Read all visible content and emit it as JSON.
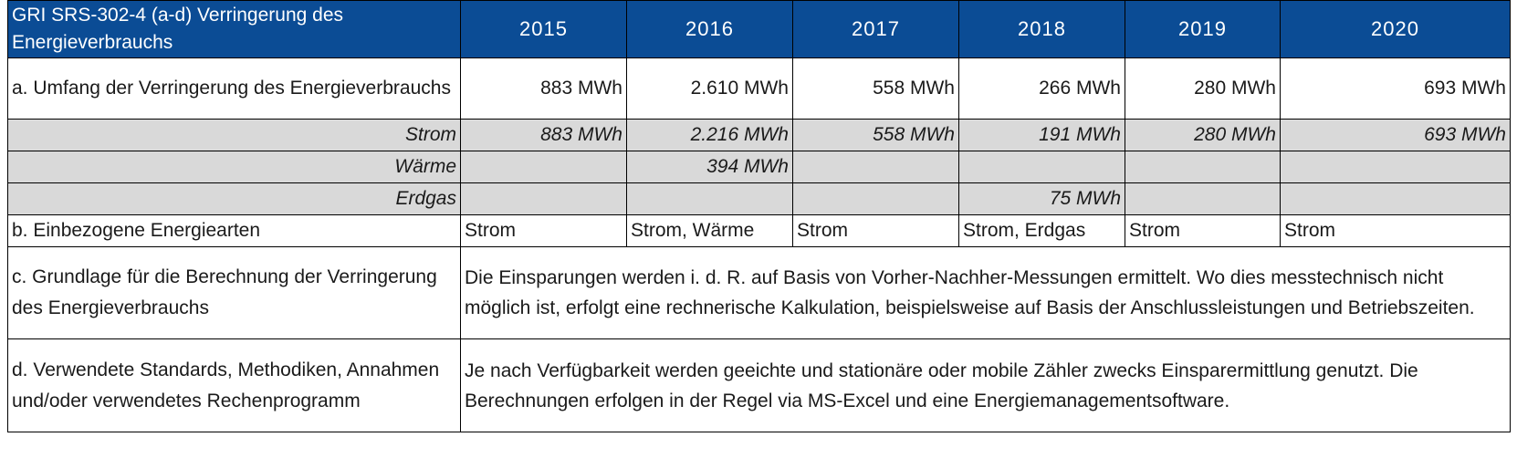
{
  "table": {
    "title": "GRI SRS-302-4 (a-d) Verringerung des Energieverbrauchs",
    "years": [
      "2015",
      "2016",
      "2017",
      "2018",
      "2019",
      "2020"
    ],
    "row_a": {
      "label": "a. Umfang der Verringerung des Energieverbrauchs",
      "values": [
        "883 MWh",
        "2.610 MWh",
        "558 MWh",
        "266 MWh",
        "280 MWh",
        "693 MWh"
      ]
    },
    "strom": {
      "label": "Strom",
      "values": [
        "883 MWh",
        "2.216 MWh",
        "558 MWh",
        "191 MWh",
        "280 MWh",
        "693 MWh"
      ]
    },
    "waerme": {
      "label": "Wärme",
      "values": [
        "",
        "394 MWh",
        "",
        "",
        "",
        ""
      ]
    },
    "erdgas": {
      "label": "Erdgas",
      "values": [
        "",
        "",
        "",
        "75 MWh",
        "",
        ""
      ]
    },
    "row_b": {
      "label": "b. Einbezogene Energiearten",
      "values": [
        "Strom",
        "Strom, Wärme",
        "Strom",
        "Strom, Erdgas",
        "Strom",
        "Strom"
      ]
    },
    "row_c": {
      "label": "c. Grundlage für die Berechnung der Verringerung des Energieverbrauchs",
      "text": "Die Einsparungen werden i. d. R. auf Basis von Vorher-Nachher-Messungen ermittelt. Wo dies messtechnisch nicht möglich ist, erfolgt eine rechnerische Kalkulation, beispielsweise auf Basis der Anschlussleistungen und Betriebszeiten."
    },
    "row_d": {
      "label": "d. Verwendete Standards, Methodiken, Annahmen und/oder verwendetes Rechenprogramm",
      "text": "Je nach Verfügbarkeit werden geeichte und stationäre oder mobile Zähler zwecks Einsparermittlung genutzt. Die Berechnungen erfolgen in der Regel via MS-Excel und eine Energiemanagementsoftware."
    }
  }
}
